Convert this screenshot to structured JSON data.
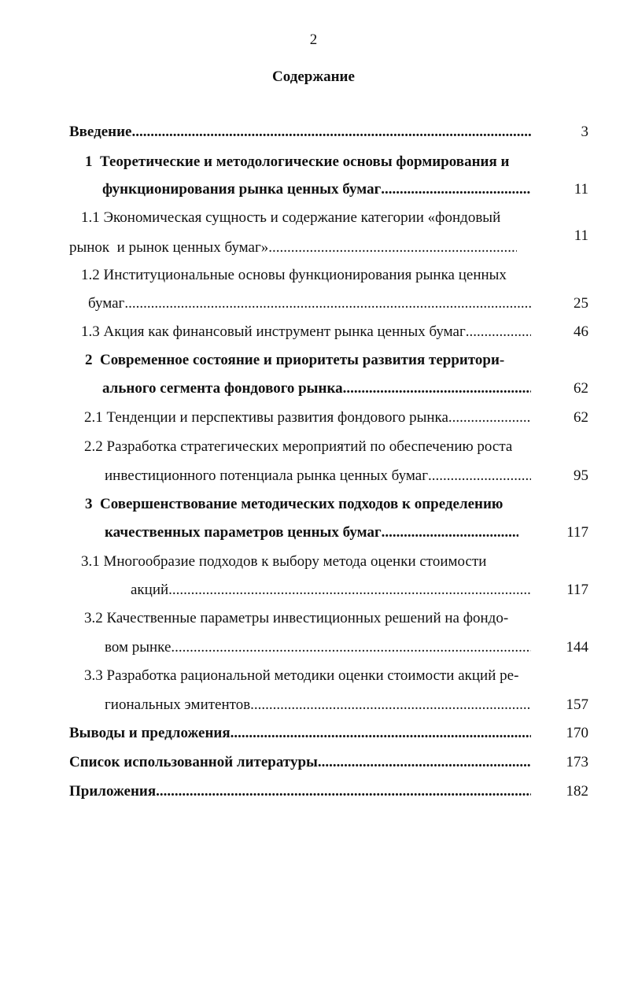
{
  "page_number": "2",
  "title": "Содержание",
  "lines": [
    {
      "text": "Введение",
      "page": "3"
    },
    {
      "text": "1  Теоретические и методологические основы формирования и"
    },
    {
      "text": "функционирования рынка ценных бумаг",
      "page": "11"
    },
    {
      "text": "1.1 Экономическая сущность и содержание категории «фондовый"
    },
    {
      "text": "рынок  и рынок ценных бумаг»",
      "page": "11"
    },
    {
      "text": "1.2 Институциональные основы функционирования рынка ценных"
    },
    {
      "text": "бумаг",
      "page": "25"
    },
    {
      "text": "1.3 Акция как финансовый инструмент рынка ценных бумаг",
      "page": "46"
    },
    {
      "text": "2  Современное состояние и приоритеты развития территори-"
    },
    {
      "text": "ального сегмента фондового рынка",
      "page": "62"
    },
    {
      "text": "2.1 Тенденции и перспективы развития фондового рынка",
      "page": "62"
    },
    {
      "text": "2.2 Разработка стратегических мероприятий по обеспечению роста"
    },
    {
      "text": "инвестиционного потенциала рынка ценных бумаг",
      "page": "95"
    },
    {
      "text": "3  Совершенствование методических подходов к определению"
    },
    {
      "text": "качественных параметров ценных бумаг",
      "page": "117"
    },
    {
      "text": "3.1 Многообразие подходов к выбору метода оценки стоимости"
    },
    {
      "text": "акций",
      "page": "117"
    },
    {
      "text": "3.2 Качественные параметры инвестиционных решений на фондо-"
    },
    {
      "text": "вом рынке",
      "page": "144"
    },
    {
      "text": "3.3 Разработка рациональной методики оценки стоимости акций ре-"
    },
    {
      "text": "гиональных эмитентов",
      "page": "157"
    },
    {
      "text": "Выводы и предложения",
      "page": "170"
    },
    {
      "text": "Список использованной литературы",
      "page": "173"
    },
    {
      "text": "Приложения",
      "page": "182"
    }
  ]
}
